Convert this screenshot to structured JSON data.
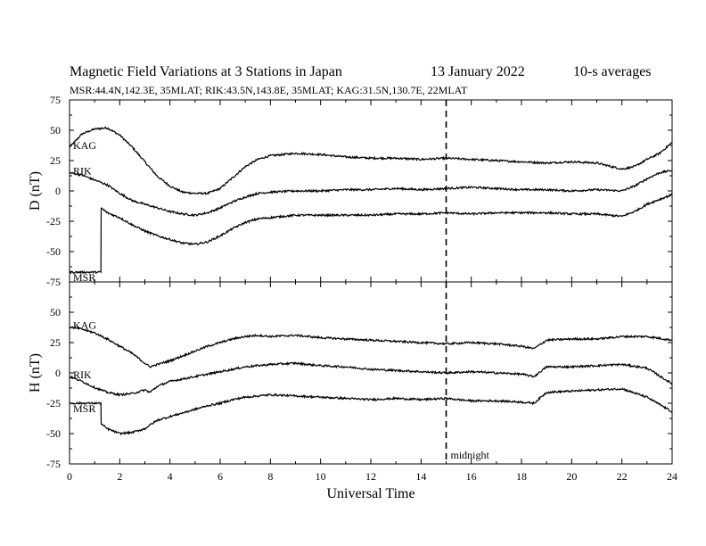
{
  "header": {
    "title": "Magnetic Field Variations at 3 Stations in Japan",
    "date": "13 January 2022",
    "averaging": "10-s averages",
    "stations_line": "MSR:44.4N,142.3E, 35MLAT;  RIK:43.5N,143.8E, 35MLAT;  KAG:31.5N,130.7E, 22MLAT"
  },
  "chart_data": {
    "type": "line",
    "xlabel": "Universal Time",
    "xlim": [
      0,
      24
    ],
    "x_ticks": [
      "0",
      "2",
      "4",
      "6",
      "8",
      "10",
      "12",
      "14",
      "16",
      "18",
      "20",
      "22",
      "24"
    ],
    "marker": {
      "x": 15,
      "label": "midnight"
    },
    "panels": [
      {
        "ylabel": "D (nT)",
        "ylim": [
          -75,
          75
        ],
        "y_ticks": [
          "75",
          "50",
          "25",
          "0",
          "-25",
          "-50",
          "-75"
        ],
        "series": [
          {
            "name": "KAG",
            "x": [
              0,
              0.5,
              1,
              1.5,
              2,
              2.5,
              3,
              3.5,
              4,
              4.5,
              5,
              5.5,
              6,
              6.5,
              7,
              7.5,
              8,
              9,
              10,
              11,
              12,
              13,
              14,
              15,
              16,
              17,
              18,
              19,
              20,
              21,
              22,
              22.5,
              23,
              23.5,
              24
            ],
            "y": [
              36,
              47,
              51,
              52,
              46,
              36,
              24,
              12,
              4,
              -1,
              -2,
              -2,
              2,
              11,
              20,
              26,
              29,
              31,
              30,
              28,
              27,
              27,
              26,
              27,
              26,
              25,
              24,
              23,
              24,
              23,
              18,
              20,
              26,
              31,
              40
            ]
          },
          {
            "name": "RIK",
            "x": [
              0,
              0.5,
              1,
              1.5,
              2,
              2.5,
              3,
              3.5,
              4,
              4.5,
              5,
              5.5,
              6,
              6.5,
              7,
              7.5,
              8,
              9,
              10,
              11,
              12,
              13,
              14,
              15,
              16,
              17,
              18,
              19,
              20,
              21,
              22,
              22.5,
              23,
              23.5,
              24
            ],
            "y": [
              15,
              13,
              9,
              5,
              -2,
              -8,
              -11,
              -14,
              -17,
              -19,
              -20,
              -18,
              -14,
              -9,
              -5,
              -2,
              -1,
              0,
              0,
              1,
              1,
              2,
              1,
              2,
              3,
              2,
              1,
              1,
              0,
              1,
              0,
              4,
              10,
              15,
              17
            ]
          },
          {
            "name": "MSR",
            "x": [
              0,
              1.25,
              1.26,
              1.5,
              2,
              2.5,
              3,
              3.5,
              4,
              4.5,
              5,
              5.5,
              6,
              6.5,
              7,
              7.5,
              8,
              9,
              10,
              11,
              12,
              13,
              14,
              15,
              16,
              17,
              18,
              19,
              20,
              21,
              22,
              22.5,
              23,
              23.5,
              24
            ],
            "y": [
              -67,
              -67,
              -14,
              -18,
              -22,
              -28,
              -33,
              -37,
              -40,
              -43,
              -44,
              -42,
              -37,
              -31,
              -26,
              -23,
              -22,
              -20,
              -20,
              -20,
              -20,
              -19,
              -19,
              -18,
              -19,
              -18,
              -18,
              -18,
              -19,
              -19,
              -21,
              -17,
              -11,
              -7,
              -3
            ]
          }
        ]
      },
      {
        "ylabel": "H (nT)",
        "ylim": [
          -75,
          75
        ],
        "y_ticks": [
          "",
          "50",
          "25",
          "0",
          "-25",
          "-50",
          "-75"
        ],
        "series": [
          {
            "name": "KAG",
            "x": [
              0,
              0.5,
              1,
              1.5,
              2,
              2.5,
              3,
              3.2,
              3.5,
              4,
              4.5,
              5,
              5.5,
              6,
              6.5,
              7,
              7.5,
              8,
              9,
              10,
              11,
              12,
              13,
              14,
              15,
              16,
              17,
              18,
              18.5,
              19,
              20,
              21,
              22,
              23,
              24
            ],
            "y": [
              38,
              36,
              33,
              28,
              22,
              16,
              8,
              5,
              7,
              10,
              14,
              18,
              22,
              25,
              28,
              30,
              31,
              30,
              31,
              29,
              28,
              27,
              26,
              25,
              24,
              25,
              24,
              22,
              20,
              27,
              28,
              28,
              30,
              30,
              27
            ]
          },
          {
            "name": "RIK",
            "x": [
              0,
              0.5,
              1,
              1.5,
              2,
              2.5,
              3,
              3.2,
              3.5,
              4,
              4.5,
              5,
              5.5,
              6,
              6.5,
              7,
              7.5,
              8,
              9,
              10,
              11,
              12,
              13,
              14,
              15,
              16,
              17,
              18,
              18.5,
              19,
              20,
              21,
              22,
              23,
              24
            ],
            "y": [
              -3,
              -7,
              -12,
              -16,
              -18,
              -17,
              -14,
              -16,
              -11,
              -7,
              -5,
              -3,
              -1,
              1,
              3,
              5,
              6,
              7,
              8,
              6,
              5,
              3,
              2,
              1,
              0,
              1,
              0,
              -1,
              -3,
              5,
              5,
              6,
              7,
              4,
              -9
            ]
          },
          {
            "name": "MSR",
            "x": [
              0,
              1.25,
              1.26,
              1.5,
              2,
              2.5,
              3,
              3.2,
              3.5,
              4,
              4.5,
              5,
              5.5,
              6,
              6.5,
              7,
              7.5,
              8,
              9,
              10,
              11,
              12,
              13,
              14,
              15,
              16,
              17,
              18,
              18.5,
              19,
              20,
              21,
              22,
              23,
              24
            ],
            "y": [
              -25,
              -25,
              -42,
              -46,
              -50,
              -49,
              -46,
              -43,
              -39,
              -36,
              -33,
              -30,
              -27,
              -25,
              -22,
              -20,
              -19,
              -18,
              -19,
              -20,
              -21,
              -22,
              -21,
              -22,
              -21,
              -23,
              -23,
              -24,
              -25,
              -16,
              -15,
              -14,
              -13,
              -20,
              -32
            ]
          }
        ]
      }
    ]
  }
}
